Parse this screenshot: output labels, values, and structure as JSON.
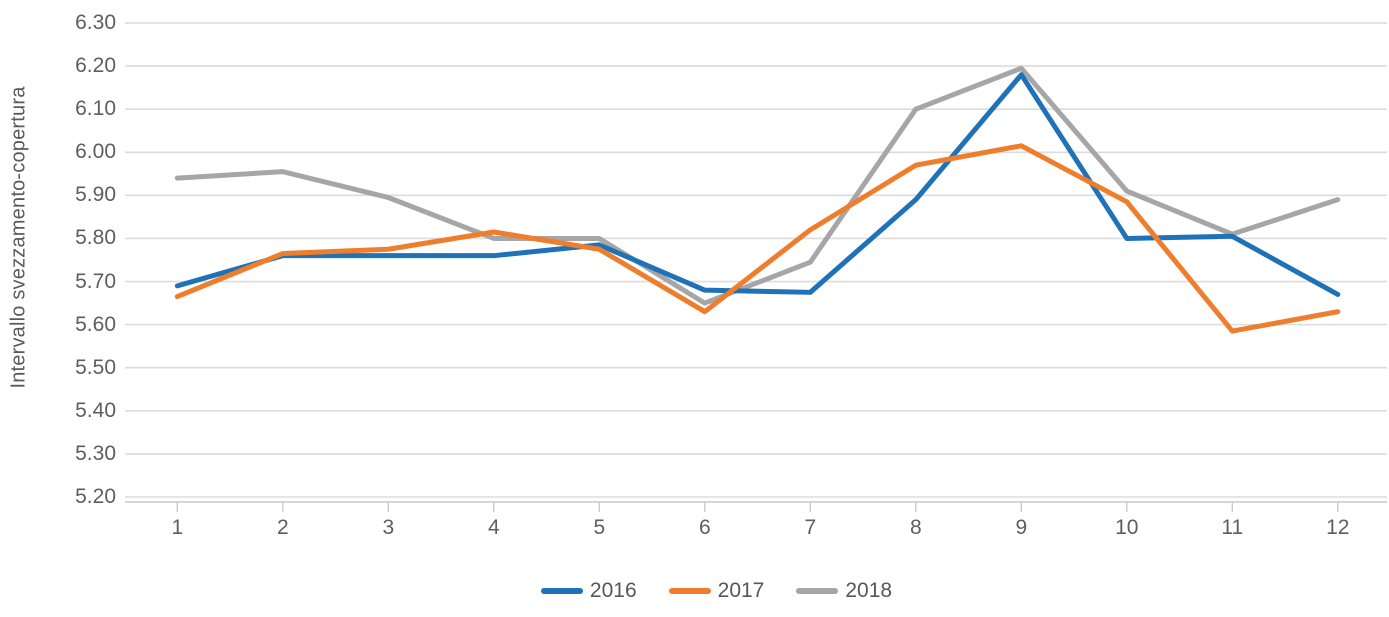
{
  "chart_data": {
    "type": "line",
    "title": "",
    "xlabel": "",
    "ylabel": "Intervallo svezzamento-copertura",
    "ylim": [
      5.2,
      6.3
    ],
    "y_tick_step": 0.1,
    "y_ticks": [
      "6.30",
      "6.20",
      "6.10",
      "6.00",
      "5.90",
      "5.80",
      "5.70",
      "5.60",
      "5.50",
      "5.40",
      "5.30",
      "5.20"
    ],
    "categories": [
      "1",
      "2",
      "3",
      "4",
      "5",
      "6",
      "7",
      "8",
      "9",
      "10",
      "11",
      "12"
    ],
    "grid": true,
    "legend_position": "bottom",
    "series": [
      {
        "name": "2016",
        "color": "#1f72b8",
        "values": [
          5.69,
          5.76,
          5.76,
          5.76,
          5.785,
          5.68,
          5.675,
          5.89,
          6.18,
          5.8,
          5.805,
          5.67
        ]
      },
      {
        "name": "2017",
        "color": "#ee7d2c",
        "values": [
          5.665,
          5.765,
          5.775,
          5.815,
          5.775,
          5.63,
          5.82,
          5.97,
          6.015,
          5.885,
          5.585,
          5.63
        ]
      },
      {
        "name": "2018",
        "color": "#a6a6a6",
        "values": [
          5.94,
          5.955,
          5.895,
          5.8,
          5.8,
          5.65,
          5.745,
          6.1,
          6.195,
          5.91,
          5.81,
          5.89
        ]
      }
    ]
  },
  "colors": {
    "gridline": "#dcdcdc",
    "axis_line": "#c8c8c8",
    "tick_text": "#5e5e5e"
  }
}
